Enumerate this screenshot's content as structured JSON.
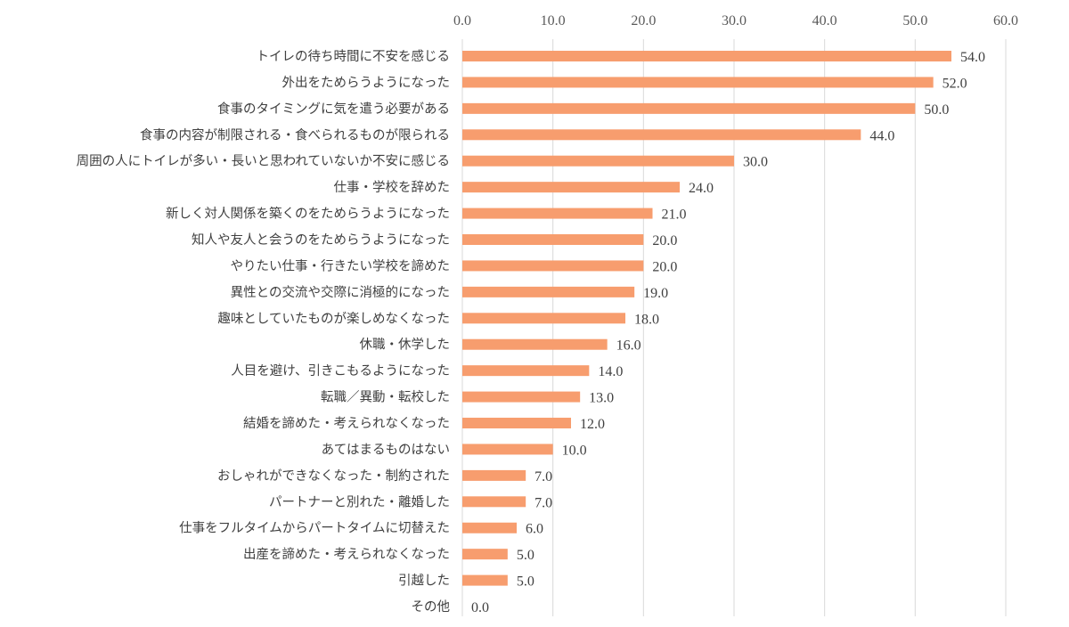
{
  "chart_data": {
    "type": "bar",
    "orientation": "horizontal",
    "categories": [
      "トイレの待ち時間に不安を感じる",
      "外出をためらうようになった",
      "食事のタイミングに気を遣う必要がある",
      "食事の内容が制限される・食べられるものが限られる",
      "周囲の人にトイレが多い・長いと思われていないか不安に感じる",
      "仕事・学校を辞めた",
      "新しく対人関係を築くのをためらうようになった",
      "知人や友人と会うのをためらうようになった",
      "やりたい仕事・行きたい学校を諦めた",
      "異性との交流や交際に消極的になった",
      "趣味としていたものが楽しめなくなった",
      "休職・休学した",
      "人目を避け、引きこもるようになった",
      "転職／異動・転校した",
      "結婚を諦めた・考えられなくなった",
      "あてはまるものはない",
      "おしゃれができなくなった・制約された",
      "パートナーと別れた・離婚した",
      "仕事をフルタイムからパートタイムに切替えた",
      "出産を諦めた・考えられなくなった",
      "引越した",
      "その他"
    ],
    "values": [
      54.0,
      52.0,
      50.0,
      44.0,
      30.0,
      24.0,
      21.0,
      20.0,
      20.0,
      19.0,
      18.0,
      16.0,
      14.0,
      13.0,
      12.0,
      10.0,
      7.0,
      7.0,
      6.0,
      5.0,
      5.0,
      0.0
    ],
    "value_labels": [
      "54.0",
      "52.0",
      "50.0",
      "44.0",
      "30.0",
      "24.0",
      "21.0",
      "20.0",
      "20.0",
      "19.0",
      "18.0",
      "16.0",
      "14.0",
      "13.0",
      "12.0",
      "10.0",
      "7.0",
      "7.0",
      "6.0",
      "5.0",
      "5.0",
      "0.0"
    ],
    "xlim": [
      0,
      60
    ],
    "x_ticks": [
      0,
      10,
      20,
      30,
      40,
      50,
      60
    ],
    "x_tick_labels": [
      "0.0",
      "10.0",
      "20.0",
      "30.0",
      "40.0",
      "50.0",
      "60.0"
    ],
    "x_axis_position": "top",
    "grid": true,
    "legend": "none",
    "title": "",
    "xlabel": "",
    "ylabel": "",
    "bar_color": "#F79D6E",
    "grid_color": "#D9D9D9"
  }
}
